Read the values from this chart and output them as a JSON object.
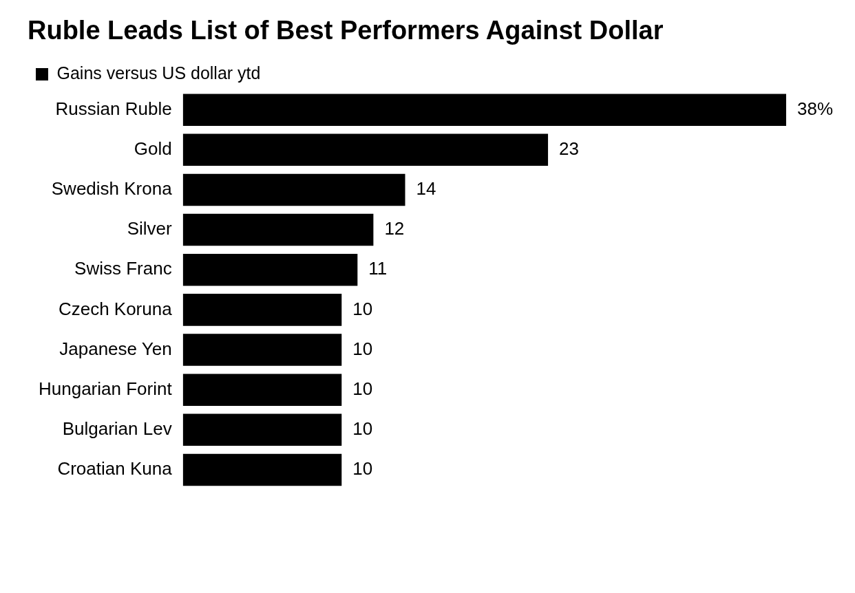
{
  "chart_data": {
    "type": "bar",
    "title": "Ruble Leads List of Best Performers Against Dollar",
    "orientation": "horizontal",
    "legend": "top left",
    "tick_labels": "y",
    "grid": false,
    "categories": [
      "Russian Ruble",
      "Gold",
      "Swedish Krona",
      "Silver",
      "Swiss Franc",
      "Czech Koruna",
      "Japanese Yen",
      "Hungarian Forint",
      "Bulgarian Lev",
      "Croatian Kuna"
    ],
    "series": [
      {
        "name": "Gains versus US dollar ytd",
        "color": "#000000",
        "values": [
          38,
          23,
          14,
          12,
          11,
          10,
          10,
          10,
          10,
          10
        ],
        "value_labels": [
          "38%",
          "23",
          "14",
          "12",
          "11",
          "10",
          "10",
          "10",
          "10",
          "10"
        ]
      }
    ]
  }
}
